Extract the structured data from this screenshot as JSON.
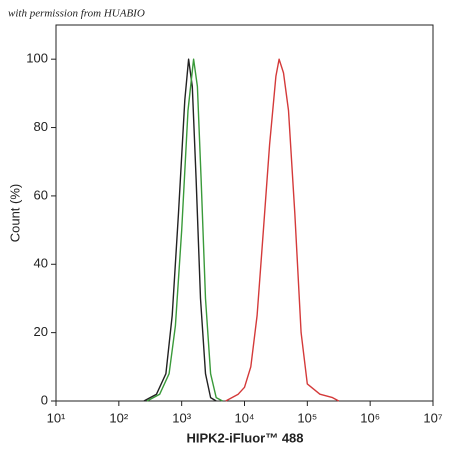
{
  "chart_data": {
    "type": "line",
    "annotation": "with permission from HUABIO",
    "xlabel": "HIPK2-iFluor™ 488",
    "ylabel": "Count  (%)",
    "xscale": "log",
    "xlim": [
      10,
      10000000
    ],
    "xticks": [
      {
        "value": 10,
        "label": "10¹"
      },
      {
        "value": 100,
        "label": "10²"
      },
      {
        "value": 1000,
        "label": "10³"
      },
      {
        "value": 10000,
        "label": "10⁴"
      },
      {
        "value": 100000,
        "label": "10⁵"
      },
      {
        "value": 1000000,
        "label": "10⁶"
      },
      {
        "value": 10000000,
        "label": "10⁷"
      }
    ],
    "ylim": [
      0,
      110
    ],
    "yticks": [
      0,
      20,
      40,
      60,
      80,
      100
    ],
    "series": [
      {
        "color": "#222222",
        "x": [
          251,
          398,
          562,
          708,
          891,
          1122,
          1288,
          1479,
          1698,
          1995,
          2399,
          2884,
          3548
        ],
        "values": [
          0,
          2,
          8,
          25,
          55,
          88,
          100,
          92,
          65,
          30,
          8,
          1,
          0
        ]
      },
      {
        "color": "#3a9a3a",
        "x": [
          282,
          447,
          631,
          794,
          1000,
          1259,
          1549,
          1778,
          2042,
          2399,
          2884,
          3548,
          4467
        ],
        "values": [
          0,
          2,
          8,
          22,
          50,
          85,
          100,
          92,
          65,
          30,
          8,
          1,
          0
        ]
      },
      {
        "color": "#d43a3a",
        "x": [
          5012,
          7943,
          10000,
          12589,
          15849,
          19953,
          25119,
          31623,
          35481,
          41687,
          50119,
          63096,
          79433,
          100000,
          158489,
          251189,
          316228
        ],
        "values": [
          0,
          2,
          4,
          10,
          25,
          50,
          75,
          95,
          100,
          96,
          85,
          55,
          20,
          5,
          2,
          1,
          0
        ]
      }
    ]
  }
}
